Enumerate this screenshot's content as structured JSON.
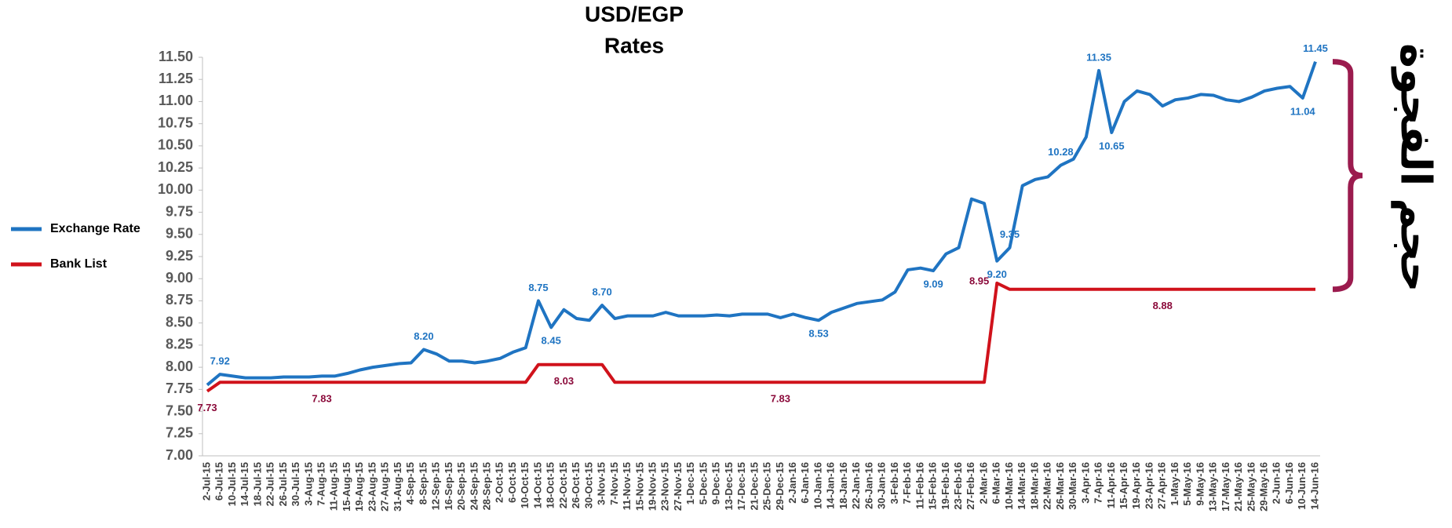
{
  "chart_data": {
    "type": "line",
    "title": [
      "USD/EGP",
      "Rates"
    ],
    "categories": [
      "2-Jul-15",
      "6-Jul-15",
      "10-Jul-15",
      "14-Jul-15",
      "18-Jul-15",
      "22-Jul-15",
      "26-Jul-15",
      "30-Jul-15",
      "3-Aug-15",
      "7-Aug-15",
      "11-Aug-15",
      "15-Aug-15",
      "19-Aug-15",
      "23-Aug-15",
      "27-Aug-15",
      "31-Aug-15",
      "4-Sep-15",
      "8-Sep-15",
      "12-Sep-15",
      "16-Sep-15",
      "20-Sep-15",
      "24-Sep-15",
      "28-Sep-15",
      "2-Oct-15",
      "6-Oct-15",
      "10-Oct-15",
      "14-Oct-15",
      "18-Oct-15",
      "22-Oct-15",
      "26-Oct-15",
      "30-Oct-15",
      "3-Nov-15",
      "7-Nov-15",
      "11-Nov-15",
      "15-Nov-15",
      "19-Nov-15",
      "23-Nov-15",
      "27-Nov-15",
      "1-Dec-15",
      "5-Dec-15",
      "9-Dec-15",
      "13-Dec-15",
      "17-Dec-15",
      "21-Dec-15",
      "25-Dec-15",
      "29-Dec-15",
      "2-Jan-16",
      "6-Jan-16",
      "10-Jan-16",
      "14-Jan-16",
      "18-Jan-16",
      "22-Jan-16",
      "26-Jan-16",
      "30-Jan-16",
      "3-Feb-16",
      "7-Feb-16",
      "11-Feb-16",
      "15-Feb-16",
      "19-Feb-16",
      "23-Feb-16",
      "27-Feb-16",
      "2-Mar-16",
      "6-Mar-16",
      "10-Mar-16",
      "14-Mar-16",
      "18-Mar-16",
      "22-Mar-16",
      "26-Mar-16",
      "30-Mar-16",
      "3-Apr-16",
      "7-Apr-16",
      "11-Apr-16",
      "15-Apr-16",
      "19-Apr-16",
      "23-Apr-16",
      "27-Apr-16",
      "1-May-16",
      "5-May-16",
      "9-May-16",
      "13-May-16",
      "17-May-16",
      "21-May-16",
      "25-May-16",
      "29-May-16",
      "2-Jun-16",
      "6-Jun-16",
      "10-Jun-16",
      "14-Jun-16"
    ],
    "series": [
      {
        "name": "Exchange Rate",
        "color": "#1f74c2",
        "values": [
          7.8,
          7.92,
          7.9,
          7.88,
          7.88,
          7.88,
          7.89,
          7.89,
          7.89,
          7.9,
          7.9,
          7.93,
          7.97,
          8.0,
          8.02,
          8.04,
          8.05,
          8.2,
          8.15,
          8.07,
          8.07,
          8.05,
          8.07,
          8.1,
          8.17,
          8.22,
          8.75,
          8.45,
          8.65,
          8.55,
          8.53,
          8.7,
          8.55,
          8.58,
          8.58,
          8.58,
          8.62,
          8.58,
          8.58,
          8.58,
          8.59,
          8.58,
          8.6,
          8.6,
          8.6,
          8.56,
          8.6,
          8.56,
          8.53,
          8.62,
          8.67,
          8.72,
          8.74,
          8.76,
          8.85,
          9.1,
          9.12,
          9.09,
          9.28,
          9.35,
          9.9,
          9.85,
          9.2,
          9.35,
          10.05,
          10.12,
          10.15,
          10.28,
          10.35,
          10.6,
          11.35,
          10.65,
          11.0,
          11.12,
          11.08,
          10.95,
          11.02,
          11.04,
          11.08,
          11.07,
          11.02,
          11.0,
          11.05,
          11.12,
          11.15,
          11.17,
          11.04,
          11.45
        ],
        "value_labels": [
          null,
          "7.92",
          null,
          null,
          null,
          null,
          null,
          null,
          null,
          null,
          null,
          null,
          null,
          null,
          null,
          null,
          null,
          "8.20",
          null,
          null,
          null,
          null,
          null,
          null,
          null,
          null,
          "8.75",
          "8.45",
          null,
          null,
          null,
          "8.70",
          null,
          null,
          null,
          null,
          null,
          null,
          null,
          null,
          null,
          null,
          null,
          null,
          null,
          null,
          null,
          null,
          "8.53",
          null,
          null,
          null,
          null,
          null,
          null,
          null,
          null,
          "9.09",
          null,
          null,
          null,
          null,
          "9.20",
          "9.35",
          null,
          null,
          null,
          "10.28",
          null,
          null,
          "11.35",
          "10.65",
          null,
          null,
          null,
          null,
          null,
          null,
          null,
          null,
          null,
          null,
          null,
          null,
          null,
          null,
          "11.04",
          "11.45"
        ]
      },
      {
        "name": "Bank List",
        "color": "#d0121b",
        "values": [
          7.73,
          7.83,
          7.83,
          7.83,
          7.83,
          7.83,
          7.83,
          7.83,
          7.83,
          7.83,
          7.83,
          7.83,
          7.83,
          7.83,
          7.83,
          7.83,
          7.83,
          7.83,
          7.83,
          7.83,
          7.83,
          7.83,
          7.83,
          7.83,
          7.83,
          7.83,
          8.03,
          8.03,
          8.03,
          8.03,
          8.03,
          8.03,
          7.83,
          7.83,
          7.83,
          7.83,
          7.83,
          7.83,
          7.83,
          7.83,
          7.83,
          7.83,
          7.83,
          7.83,
          7.83,
          7.83,
          7.83,
          7.83,
          7.83,
          7.83,
          7.83,
          7.83,
          7.83,
          7.83,
          7.83,
          7.83,
          7.83,
          7.83,
          7.83,
          7.83,
          7.83,
          7.83,
          8.95,
          8.88,
          8.88,
          8.88,
          8.88,
          8.88,
          8.88,
          8.88,
          8.88,
          8.88,
          8.88,
          8.88,
          8.88,
          8.88,
          8.88,
          8.88,
          8.88,
          8.88,
          8.88,
          8.88,
          8.88,
          8.88,
          8.88,
          8.88,
          8.88,
          8.88
        ],
        "value_labels": [
          "7.73",
          null,
          null,
          null,
          null,
          null,
          null,
          null,
          null,
          "7.83",
          null,
          null,
          null,
          null,
          null,
          null,
          null,
          null,
          null,
          null,
          null,
          null,
          null,
          null,
          null,
          null,
          null,
          null,
          "8.03",
          null,
          null,
          null,
          null,
          null,
          null,
          null,
          null,
          null,
          null,
          null,
          null,
          null,
          null,
          null,
          null,
          "7.83",
          null,
          null,
          null,
          null,
          null,
          null,
          null,
          null,
          null,
          null,
          null,
          null,
          null,
          null,
          null,
          null,
          "8.95",
          null,
          null,
          null,
          null,
          null,
          null,
          null,
          null,
          null,
          null,
          null,
          null,
          "8.88",
          null,
          null,
          null,
          null,
          null,
          null,
          null,
          null,
          null,
          null,
          null,
          null
        ]
      }
    ],
    "ylim": [
      7,
      11.5
    ],
    "yticks": [
      {
        "value": 7,
        "label": "7.00"
      },
      7.25,
      {
        "value": 7.5,
        "label": "7.50"
      },
      7.75,
      {
        "value": 8,
        "label": "8.00"
      },
      8.25,
      {
        "value": 8.5,
        "label": "8.50"
      },
      8.75,
      {
        "value": 9,
        "label": "9.00"
      },
      9.25,
      {
        "value": 9.5,
        "label": "9.50"
      },
      9.75,
      {
        "value": 10,
        "label": "10.00"
      },
      10.25,
      {
        "value": 10.5,
        "label": "10.50"
      },
      10.75,
      {
        "value": 11,
        "label": "11.00"
      },
      11.25,
      {
        "value": 11.5,
        "label": "11.50"
      }
    ],
    "legend": "left",
    "annotation": "حجم الفجوة",
    "annotation_color": "#9b1b4e"
  }
}
